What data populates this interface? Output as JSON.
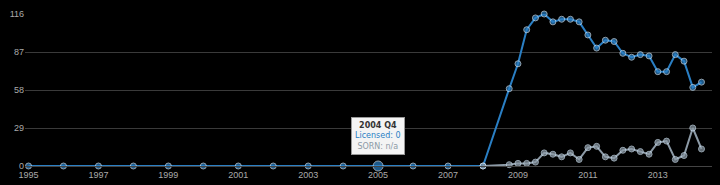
{
  "chart_data": {
    "type": "line",
    "x": [
      1995,
      1996,
      1997,
      1998,
      1999,
      2000,
      2001,
      2002,
      2003,
      2004,
      2005,
      2006,
      2007,
      2008,
      2008.75,
      2009,
      2009.25,
      2009.5,
      2009.75,
      2010,
      2010.25,
      2010.5,
      2010.75,
      2011,
      2011.25,
      2011.5,
      2011.75,
      2012,
      2012.25,
      2012.5,
      2012.75,
      2013,
      2013.25,
      2013.5,
      2013.75,
      2014,
      2014.25
    ],
    "series": [
      {
        "name": "Licensed",
        "color": "#2a7fc4",
        "values": [
          0,
          0,
          0,
          0,
          0,
          0,
          0,
          0,
          0,
          0,
          0,
          0,
          0,
          0,
          59,
          78,
          104,
          113,
          116,
          110,
          112,
          112,
          110,
          100,
          90,
          96,
          95,
          86,
          83,
          85,
          84,
          72,
          72,
          85,
          80,
          60,
          64
        ]
      },
      {
        "name": "SORN",
        "color": "#8c9aa6",
        "values": [
          null,
          null,
          null,
          null,
          null,
          null,
          null,
          null,
          null,
          null,
          null,
          null,
          null,
          0,
          1,
          2,
          2,
          3,
          10,
          9,
          7,
          10,
          5,
          14,
          15,
          7,
          6,
          12,
          13,
          11,
          9,
          18,
          19,
          5,
          8,
          29,
          13
        ]
      }
    ],
    "xlim": [
      1994.9,
      2014.55
    ],
    "xticks": [
      1995,
      1997,
      1999,
      2001,
      2003,
      2005,
      2007,
      2009,
      2011,
      2013
    ],
    "ylim": [
      0,
      116
    ],
    "yticks": [
      0,
      29,
      58,
      87,
      116
    ],
    "grid": true,
    "marker": "circle",
    "annotations": [
      {
        "x": 2005,
        "y": 0,
        "title": "2004 Q4",
        "lines": [
          "Licensed: 0",
          "SORN: n/a"
        ]
      }
    ]
  }
}
